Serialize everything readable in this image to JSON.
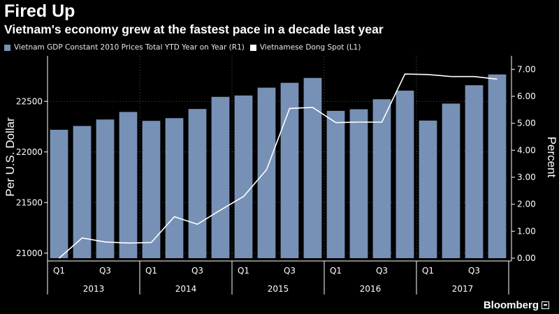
{
  "header": {
    "title": "Fired Up",
    "subtitle": "Vietnam's economy grew at the fastest pace in a decade last year"
  },
  "legend": {
    "bars_label": "Vietnam GDP Constant 2010 Prices Total YTD Year on Year  (R1)",
    "line_label": "Vietnamese Dong Spot  (L1)"
  },
  "brand": "Bloomberg",
  "colors": {
    "bar": "#7790b5",
    "line": "#ffffff",
    "background": "#000000",
    "grid": "#555555"
  },
  "chart_data": {
    "type": "bar",
    "title": "Fired Up",
    "subtitle": "Vietnam's economy grew at the fastest pace in a decade last year",
    "ylabel_left": "Per U.S. Dollar",
    "ylabel_right": "Percent",
    "yticks_left": [
      "21000",
      "21500",
      "22000",
      "22500"
    ],
    "yticks_right": [
      "0.00",
      "1.00",
      "2.00",
      "3.00",
      "4.00",
      "5.00",
      "6.00",
      "7.00"
    ],
    "ylim_left": [
      20950,
      22950
    ],
    "ylim_right": [
      0,
      7.5
    ],
    "grid": true,
    "legend_position": "top-left",
    "categories": [
      "Q1 2013",
      "Q2 2013",
      "Q3 2013",
      "Q4 2013",
      "Q1 2014",
      "Q2 2014",
      "Q3 2014",
      "Q4 2014",
      "Q1 2015",
      "Q2 2015",
      "Q3 2015",
      "Q4 2015",
      "Q1 2016",
      "Q2 2016",
      "Q3 2016",
      "Q4 2016",
      "Q1 2017",
      "Q2 2017",
      "Q3 2017",
      "Q4 2017"
    ],
    "x_tick_labels": [
      {
        "label": "Q1",
        "index": 0
      },
      {
        "label": "Q3",
        "index": 2
      },
      {
        "label": "Q1",
        "index": 4
      },
      {
        "label": "Q3",
        "index": 6
      },
      {
        "label": "Q1",
        "index": 8
      },
      {
        "label": "Q3",
        "index": 10
      },
      {
        "label": "Q1",
        "index": 12
      },
      {
        "label": "Q3",
        "index": 14
      },
      {
        "label": "Q1",
        "index": 16
      },
      {
        "label": "Q3",
        "index": 18
      }
    ],
    "years": [
      {
        "label": "2013",
        "start": 0,
        "end": 3
      },
      {
        "label": "2014",
        "start": 4,
        "end": 7
      },
      {
        "label": "2015",
        "start": 8,
        "end": 11
      },
      {
        "label": "2016",
        "start": 12,
        "end": 15
      },
      {
        "label": "2017",
        "start": 16,
        "end": 19
      }
    ],
    "series": [
      {
        "name": "Vietnam GDP Constant 2010 Prices Total YTD Year on Year (R1)",
        "type": "bar",
        "axis": "right",
        "values": [
          4.76,
          4.9,
          5.14,
          5.42,
          5.09,
          5.19,
          5.53,
          5.98,
          6.03,
          6.32,
          6.5,
          6.68,
          5.46,
          5.52,
          5.89,
          6.21,
          5.1,
          5.73,
          6.41,
          6.81
        ]
      },
      {
        "name": "Vietnamese Dong Spot (L1)",
        "type": "line",
        "axis": "left",
        "points": [
          [
            0,
            20950
          ],
          [
            1,
            21150
          ],
          [
            2,
            21110
          ],
          [
            3,
            21100
          ],
          [
            4,
            21105
          ],
          [
            5,
            21360
          ],
          [
            6,
            21285
          ],
          [
            7,
            21425
          ],
          [
            8,
            21560
          ],
          [
            9,
            21825
          ],
          [
            10,
            22430
          ],
          [
            11,
            22440
          ],
          [
            12,
            22290
          ],
          [
            13,
            22295
          ],
          [
            14,
            22295
          ],
          [
            15,
            22770
          ],
          [
            16,
            22765
          ],
          [
            17,
            22745
          ],
          [
            18,
            22745
          ],
          [
            19,
            22720
          ]
        ]
      }
    ]
  }
}
